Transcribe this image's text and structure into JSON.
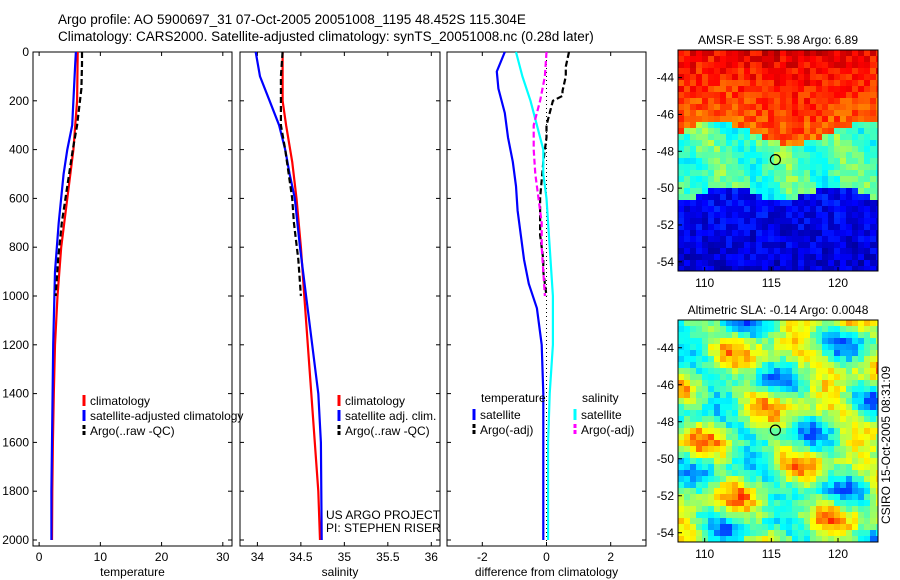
{
  "header": {
    "line1": "Argo profile: AO 5900697_31 07-Oct-2005 20051008_1195 48.452S 115.304E",
    "line2": "Climatology: CARS2000. Satellite-adjusted climatology: synTS_20051008.nc (0.28d later)"
  },
  "colors": {
    "climatology": "#ff0000",
    "satellite": "#0000ff",
    "argo": "#000000",
    "salinity_satellite": "#00ffff",
    "salinity_argo": "#ff00ff"
  },
  "chart_data": [
    {
      "type": "line",
      "id": "temperature",
      "xlabel": "temperature",
      "ylabel": "",
      "xlim": [
        -1,
        31.5
      ],
      "ylim": [
        2050,
        0
      ],
      "xticks": [
        0,
        10,
        20,
        30
      ],
      "yticks": [
        0,
        200,
        400,
        600,
        800,
        1000,
        1200,
        1400,
        1600,
        1800,
        2000
      ],
      "legend": [
        "climatology",
        "satellite-adjusted climatology",
        "Argo(..raw -QC)"
      ],
      "legend_placement": "lower-right",
      "series": [
        {
          "name": "climatology",
          "style": "solid",
          "color": "#ff0000",
          "x": [
            6.3,
            6.2,
            5.6,
            4.6,
            3.6,
            3.0,
            2.6,
            2.4,
            2.25,
            2.15,
            2.1
          ],
          "y": [
            0,
            200,
            400,
            600,
            800,
            1000,
            1200,
            1400,
            1600,
            1800,
            2000
          ]
        },
        {
          "name": "satellite-adjusted climatology",
          "style": "solid",
          "color": "#0000ff",
          "x": [
            6.0,
            5.9,
            5.7,
            5.4,
            4.6,
            4.0,
            3.2,
            2.6,
            2.3,
            2.1,
            2.0,
            2.0
          ],
          "y": [
            0,
            50,
            150,
            300,
            400,
            500,
            700,
            900,
            1200,
            1600,
            1800,
            2000
          ]
        },
        {
          "name": "Argo(..raw -QC)",
          "style": "dashed",
          "color": "#000000",
          "x": [
            7.0,
            7.0,
            6.9,
            6.2,
            5.5,
            4.6,
            3.7,
            3.1,
            2.7
          ],
          "y": [
            0,
            50,
            150,
            300,
            400,
            550,
            700,
            850,
            1000
          ]
        }
      ]
    },
    {
      "type": "line",
      "id": "salinity",
      "xlabel": "salinity",
      "ylabel": "",
      "xlim": [
        33.8,
        36.1
      ],
      "ylim": [
        2050,
        0
      ],
      "xticks": [
        34,
        34.5,
        35,
        35.5,
        36
      ],
      "legend": [
        "climatology",
        "satellite adj. clim.",
        "Argo(..raw -QC)"
      ],
      "legend_placement": "lower-right",
      "annotations": [
        "US ARGO PROJECT",
        "PI: STEPHEN RISER"
      ],
      "series": [
        {
          "name": "climatology",
          "style": "solid",
          "color": "#ff0000",
          "x": [
            34.29,
            34.29,
            34.33,
            34.4,
            34.45,
            34.5,
            34.54,
            34.58,
            34.62,
            34.66,
            34.7,
            34.72
          ],
          "y": [
            0,
            200,
            300,
            450,
            600,
            800,
            1000,
            1200,
            1400,
            1600,
            1800,
            2000
          ]
        },
        {
          "name": "satellite adj. clim.",
          "style": "solid",
          "color": "#0000ff",
          "x": [
            33.98,
            34.03,
            34.14,
            34.25,
            34.32,
            34.37,
            34.43,
            34.49,
            34.56,
            34.63,
            34.7,
            34.73,
            34.74
          ],
          "y": [
            0,
            100,
            200,
            300,
            400,
            500,
            600,
            800,
            1000,
            1200,
            1400,
            1600,
            2000
          ]
        },
        {
          "name": "Argo(..raw -QC)",
          "style": "dashed",
          "color": "#000000",
          "x": [
            34.29,
            34.27,
            34.27,
            34.27,
            34.32,
            34.36,
            34.4,
            34.42,
            34.47,
            34.5
          ],
          "y": [
            0,
            100,
            200,
            300,
            400,
            500,
            600,
            700,
            850,
            1000
          ]
        }
      ]
    },
    {
      "type": "line",
      "id": "difference",
      "xlabel": "difference from climatology",
      "ylabel": "",
      "xlim": [
        -3.1,
        3.1
      ],
      "ylim": [
        2050,
        0
      ],
      "xticks": [
        -2,
        0,
        2
      ],
      "legend": [
        "temperature",
        "satellite",
        "Argo(-adj)",
        "salinity",
        "satellite",
        "Argo(-adj)"
      ],
      "legend_placement": "lower-center",
      "series": [
        {
          "name": "temperature satellite",
          "style": "solid",
          "color": "#0000ff",
          "x": [
            -1.3,
            -1.55,
            -1.5,
            -1.3,
            -1.2,
            -1.05,
            -0.95,
            -0.9,
            -0.8,
            -0.7,
            -0.55,
            -0.3,
            -0.15,
            -0.1,
            -0.1,
            -0.1
          ],
          "y": [
            0,
            80,
            150,
            250,
            350,
            450,
            550,
            650,
            750,
            850,
            950,
            1050,
            1200,
            1400,
            1800,
            2000
          ]
        },
        {
          "name": "temperature Argo(-adj)",
          "style": "dashed",
          "color": "#000000",
          "x": [
            0.7,
            0.6,
            0.6,
            0.5,
            0.5,
            0.2,
            0.0,
            0.0,
            -0.1,
            -0.2,
            -0.2,
            -0.1,
            -0.1,
            0.0
          ],
          "y": [
            0,
            60,
            100,
            160,
            180,
            200,
            300,
            350,
            450,
            600,
            750,
            850,
            900,
            1000
          ]
        },
        {
          "name": "salinity satellite",
          "style": "solid",
          "color": "#00ffff",
          "x": [
            -0.95,
            -0.75,
            -0.5,
            -0.3,
            -0.1,
            -0.1,
            0.0,
            0.1,
            0.2,
            0.2,
            0.1,
            0.05,
            0.05
          ],
          "y": [
            0,
            100,
            200,
            300,
            400,
            500,
            600,
            800,
            1000,
            1200,
            1400,
            1600,
            2000
          ]
        },
        {
          "name": "salinity Argo(-adj)",
          "style": "dashed",
          "color": "#ff00ff",
          "x": [
            0.0,
            -0.05,
            -0.2,
            -0.3,
            -0.4,
            -0.4,
            -0.35,
            -0.25,
            -0.15,
            -0.15,
            -0.1,
            -0.05
          ],
          "y": [
            0,
            100,
            200,
            250,
            300,
            400,
            500,
            600,
            700,
            800,
            900,
            1000
          ]
        }
      ]
    },
    {
      "type": "heatmap",
      "id": "sst",
      "title": "AMSR-E SST: 5.98 Argo: 6.89",
      "xlim": [
        108,
        123
      ],
      "ylim": [
        -54.5,
        -42.5
      ],
      "xticks": [
        110,
        115,
        120
      ],
      "yticks": [
        -44,
        -46,
        -48,
        -50,
        -52,
        -54
      ],
      "marker": {
        "lon": 115.304,
        "lat": -48.452
      }
    },
    {
      "type": "heatmap",
      "id": "sla",
      "title": "Altimetric SLA: -0.14 Argo: 0.0048",
      "xlim": [
        108,
        123
      ],
      "ylim": [
        -54.5,
        -42.5
      ],
      "xticks": [
        110,
        115,
        120
      ],
      "yticks": [
        -44,
        -46,
        -48,
        -50,
        -52,
        -54
      ],
      "marker": {
        "lon": 115.304,
        "lat": -48.452
      },
      "side_label": "CSIRO 15-Oct-2005 08:31:09"
    }
  ]
}
